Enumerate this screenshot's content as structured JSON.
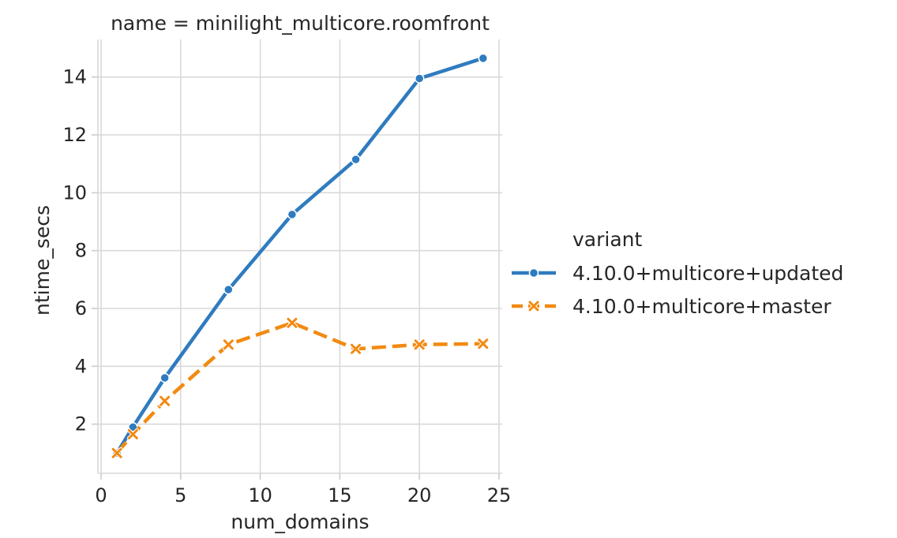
{
  "chart_data": {
    "type": "line",
    "title": "name = minilight_multicore.roomfront",
    "xlabel": "num_domains",
    "ylabel": "ntime_secs",
    "xlim": [
      -0.2,
      25.2
    ],
    "ylim": [
      0.3,
      15.3
    ],
    "xticks": [
      0,
      5,
      10,
      15,
      20,
      25
    ],
    "yticks": [
      2,
      4,
      6,
      8,
      10,
      12,
      14
    ],
    "grid": true,
    "legend": {
      "title": "variant",
      "placement": "right"
    },
    "series": [
      {
        "name": "4.10.0+multicore+updated",
        "color": "#2f7bbf",
        "marker": "circle",
        "linestyle": "solid",
        "x": [
          1,
          2,
          4,
          8,
          12,
          16,
          20,
          24
        ],
        "y": [
          1.0,
          1.9,
          3.6,
          6.65,
          9.25,
          11.15,
          13.95,
          14.65
        ]
      },
      {
        "name": "4.10.0+multicore+master",
        "color": "#f28a12",
        "marker": "x",
        "linestyle": "dashed",
        "x": [
          1,
          2,
          4,
          8,
          12,
          16,
          20,
          24
        ],
        "y": [
          1.0,
          1.65,
          2.8,
          4.75,
          5.5,
          4.6,
          4.75,
          4.78
        ]
      }
    ]
  }
}
